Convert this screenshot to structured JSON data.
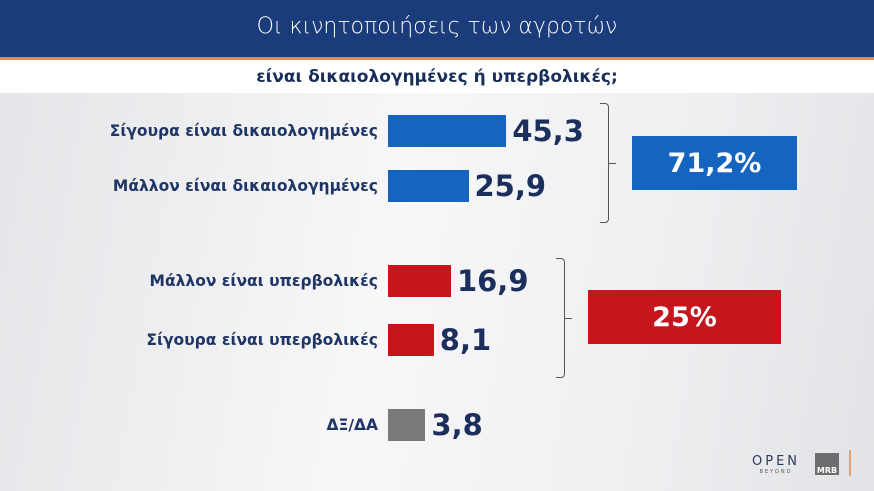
{
  "header": {
    "title": "Οι κινητοποιήσεις των αγροτών",
    "subtitle": "είναι δικαιολογημένες ή υπερβολικές;"
  },
  "colors": {
    "header": "#1b3c7a",
    "justified": "#1565c0",
    "exaggerated": "#c4161c",
    "no_answer": "#7a7a7a"
  },
  "chart_data": {
    "type": "bar",
    "orientation": "horizontal",
    "title": "Οι κινητοποιήσεις των αγροτών είναι δικαιολογημένες ή υπερβολικές;",
    "categories": [
      "Σίγουρα είναι δικαιολογημένες",
      "Μάλλον είναι δικαιολογημένες",
      "Μάλλον είναι υπερβολικές",
      "Σίγουρα είναι υπερβολικές",
      "ΔΞ/ΔΑ"
    ],
    "values": [
      45.3,
      25.9,
      16.9,
      8.1,
      3.8
    ],
    "value_labels": [
      "45,3",
      "25,9",
      "16,9",
      "8,1",
      "3,8"
    ],
    "bar_colors": [
      "#1565c0",
      "#1565c0",
      "#c4161c",
      "#c4161c",
      "#7a7a7a"
    ],
    "groups": [
      {
        "members": [
          0,
          1
        ],
        "total": 71.2,
        "total_label": "71,2%",
        "color": "#1565c0"
      },
      {
        "members": [
          2,
          3
        ],
        "total": 25,
        "total_label": "25%",
        "color": "#c4161c"
      }
    ]
  },
  "logos": {
    "open": "OPEN",
    "open_sub": "BEYOND",
    "mrb": "MRB"
  }
}
